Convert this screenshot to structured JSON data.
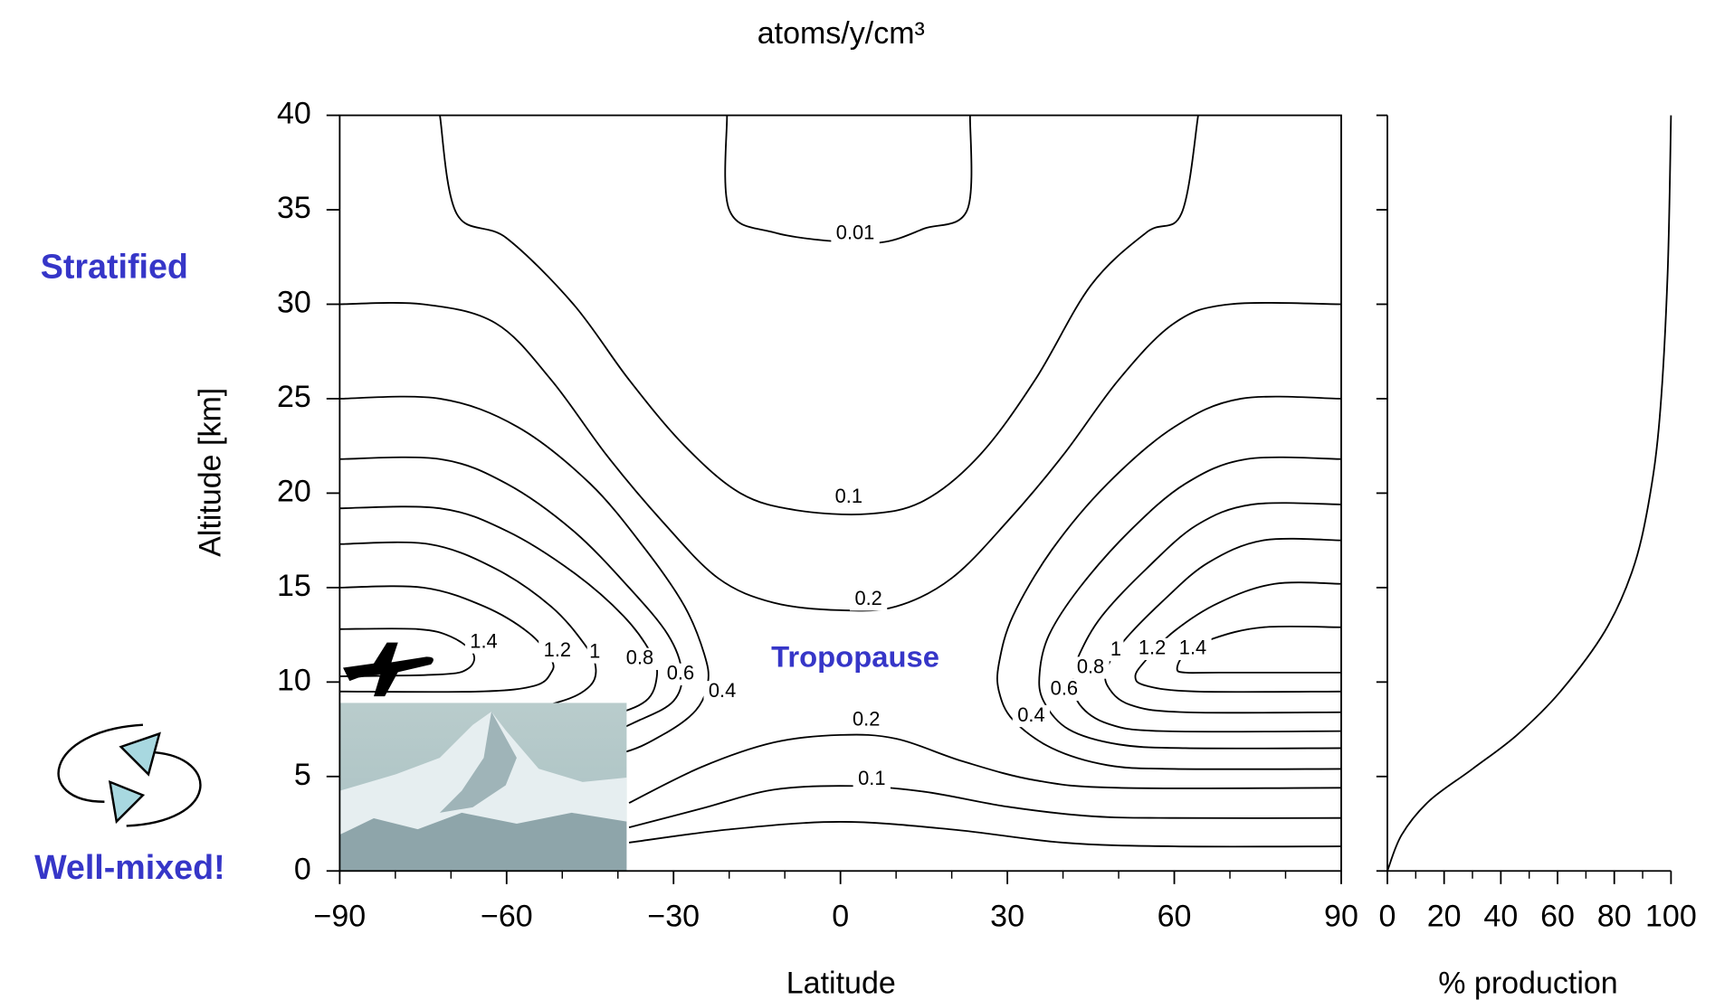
{
  "chart_data": [
    {
      "type": "contour",
      "title": "atoms/y/cm³",
      "xlabel": "Latitude",
      "ylabel": "Altitude [km]",
      "annotations": [
        "Stratified",
        "Well-mixed!",
        "Tropopause"
      ],
      "xlim": [
        -90,
        90
      ],
      "ylim": [
        0,
        40
      ],
      "xticks": [
        {
          "value": -90,
          "label": "−90"
        },
        {
          "value": -60,
          "label": "−60"
        },
        {
          "value": -30,
          "label": "−30"
        },
        0,
        30,
        60,
        90
      ],
      "xminor": [
        -80,
        -70,
        -50,
        -40,
        -20,
        -10,
        10,
        20,
        40,
        50,
        70,
        80
      ],
      "yticks": [
        0,
        5,
        10,
        15,
        20,
        25,
        30,
        35,
        40
      ],
      "color": "#000000",
      "contours": [
        {
          "level": 0.01,
          "x": [
            -20.4,
            -20,
            -12,
            0,
            8,
            15,
            22.8,
            23.3
          ],
          "y": [
            40,
            35,
            33.8,
            33.3,
            33.3,
            34,
            35,
            40
          ]
        },
        {
          "level": 0.1,
          "x": [
            -72,
            -69,
            -60,
            -48,
            -38,
            -28,
            -18,
            -8,
            5,
            15,
            25,
            35,
            45,
            55,
            61.3,
            64.3,
            null,
            -38,
            -25,
            -12,
            2,
            15,
            30,
            45,
            60,
            90
          ],
          "y": [
            40,
            34.8,
            33.5,
            30,
            26,
            22.5,
            20,
            19.1,
            18.9,
            19.6,
            22,
            26,
            31,
            33.8,
            34.8,
            40,
            null,
            2.3,
            3.3,
            4.3,
            4.5,
            4.2,
            3.4,
            2.9,
            2.8,
            2.8
          ]
        },
        {
          "level": 0.2,
          "x": [
            -90,
            -75,
            -62,
            -52,
            -42,
            -32,
            -22,
            -12,
            0,
            10,
            20,
            30,
            40,
            50,
            60,
            70,
            90,
            null,
            -38,
            -25,
            -12,
            0,
            10,
            22,
            35,
            50,
            90
          ],
          "y": [
            30,
            30,
            29,
            26,
            22,
            18.5,
            15.5,
            14.2,
            13.8,
            14,
            15.5,
            18.5,
            22,
            26,
            29,
            30,
            30,
            null,
            3.6,
            5.5,
            6.8,
            7.2,
            7,
            5.8,
            4.8,
            4.4,
            4.4
          ]
        },
        {
          "level": 0.4,
          "x": [
            -90,
            -72,
            -58,
            -45,
            -35,
            -28,
            -24.5,
            -23.8,
            -26,
            -32,
            -40,
            -55,
            -70,
            -90,
            null,
            90,
            72,
            60,
            48,
            38,
            31,
            28.5,
            28.5,
            31,
            38,
            48,
            60,
            90
          ],
          "y": [
            25,
            25,
            23.5,
            20.5,
            17,
            14,
            11.5,
            10,
            8.5,
            7.2,
            6.2,
            5.6,
            5.4,
            5.4,
            null,
            25,
            25,
            23.5,
            20.5,
            17,
            13.5,
            11,
            9.5,
            8,
            6.5,
            5.6,
            5.4,
            5.4
          ]
        },
        {
          "level": 0.6,
          "x": [
            -90,
            -72,
            -60,
            -48,
            -38,
            -31,
            -28.5,
            -30,
            -36,
            -45,
            -60,
            -90,
            null,
            90,
            73,
            62,
            52,
            43,
            37.5,
            35.8,
            36.5,
            41,
            50,
            62,
            90
          ],
          "y": [
            21.8,
            21.8,
            20.5,
            18,
            15,
            12.5,
            10.5,
            9,
            8,
            7,
            6.5,
            6.5,
            null,
            21.8,
            21.8,
            20.5,
            18,
            15,
            12.5,
            10.5,
            9,
            7.5,
            6.7,
            6.5,
            6.5
          ]
        },
        {
          "level": 0.8,
          "x": [
            -90,
            -72,
            -60,
            -48,
            -39,
            -34,
            -33,
            -35,
            -42,
            -55,
            -90,
            null,
            90,
            74,
            64,
            55,
            47,
            43,
            41.8,
            43,
            48,
            58,
            90
          ],
          "y": [
            19.2,
            19.2,
            18,
            15.8,
            13.5,
            11.5,
            10.3,
            9,
            8.2,
            7.5,
            7.4,
            null,
            19.4,
            19.4,
            18.3,
            16,
            13.5,
            11.5,
            10.2,
            8.8,
            7.8,
            7.4,
            7.4
          ]
        },
        {
          "level": 1,
          "x": [
            -90,
            -74,
            -62,
            -52,
            -46,
            -44,
            -45,
            -50,
            -60,
            -90,
            null,
            90,
            76,
            66,
            58,
            51,
            48,
            48,
            52,
            62,
            90
          ],
          "y": [
            17.3,
            17.3,
            16,
            14,
            12,
            10.8,
            9.8,
            9,
            8.5,
            8.4,
            null,
            17.5,
            17.5,
            16.3,
            14.3,
            12.2,
            10.8,
            9.8,
            8.8,
            8.4,
            8.4
          ]
        },
        {
          "level": 1.2,
          "x": [
            -90,
            -75,
            -64,
            -56,
            -52,
            -52,
            -55,
            -65,
            -90,
            null,
            90,
            78,
            68,
            60,
            55,
            53,
            55,
            64,
            90
          ],
          "y": [
            15,
            15,
            14,
            12.6,
            11.2,
            10.5,
            9.8,
            9.5,
            9.5,
            null,
            15.2,
            15.2,
            14.2,
            12.7,
            11.2,
            10.3,
            9.8,
            9.5,
            9.5
          ]
        },
        {
          "level": 1.4,
          "x": [
            -90,
            -76,
            -70,
            -66,
            -67,
            -72,
            -90,
            null,
            90,
            76,
            67,
            62,
            60.5,
            62,
            68,
            90
          ],
          "y": [
            12.8,
            12.8,
            12.4,
            11.5,
            10.7,
            10.4,
            10.3,
            null,
            12.9,
            12.9,
            12.3,
            11.5,
            10.7,
            10.5,
            10.5,
            10.5
          ]
        },
        {
          "x": [
            -38,
            -20,
            0,
            20,
            40,
            60,
            90
          ],
          "y": [
            1.5,
            2.2,
            2.6,
            2.2,
            1.5,
            1.3,
            1.3
          ]
        }
      ]
    },
    {
      "type": "line",
      "xlabel": "% production",
      "xlim": [
        0,
        100
      ],
      "ylim": [
        0,
        40
      ],
      "xticks": [
        0,
        20,
        40,
        60,
        80,
        100
      ],
      "xminor": [
        10,
        30,
        50,
        70,
        90
      ],
      "color": "#000000",
      "x": [
        0,
        5,
        14.7,
        30,
        45.7,
        61,
        76.7,
        86.4,
        92,
        96,
        98.8,
        100
      ],
      "y": [
        0,
        1.9,
        3.7,
        5.4,
        7.2,
        9.5,
        12.7,
        15.9,
        19.4,
        24,
        31.6,
        40
      ]
    }
  ]
}
